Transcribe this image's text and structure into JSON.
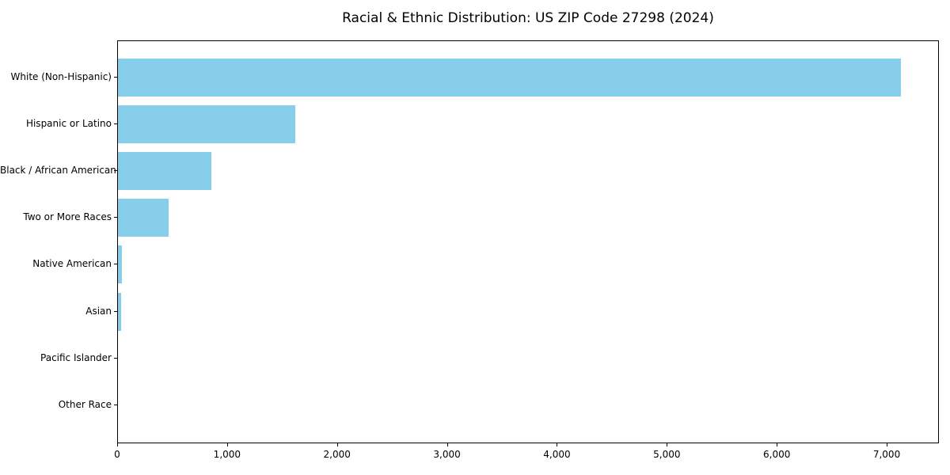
{
  "title": "Racial & Ethnic Distribution: US ZIP Code 27298 (2024)",
  "chart_data": {
    "type": "bar",
    "orientation": "horizontal",
    "title": "Racial & Ethnic Distribution: US ZIP Code 27298 (2024)",
    "xlabel": "",
    "ylabel": "",
    "categories": [
      "White (Non-Hispanic)",
      "Hispanic or Latino",
      "Black / African American",
      "Two or More Races",
      "Native American",
      "Asian",
      "Pacific Islander",
      "Other Race"
    ],
    "values": [
      7120,
      1610,
      850,
      460,
      35,
      30,
      0,
      0
    ],
    "xlim": [
      0,
      7475
    ],
    "x_ticks": [
      0,
      1000,
      2000,
      3000,
      4000,
      5000,
      6000,
      7000
    ],
    "x_tick_labels": [
      "0",
      "1,000",
      "2,000",
      "3,000",
      "4,000",
      "5,000",
      "6,000",
      "7,000"
    ],
    "bar_color": "#87CEEB",
    "frame_color": "#000000",
    "grid": false,
    "legend": null
  }
}
